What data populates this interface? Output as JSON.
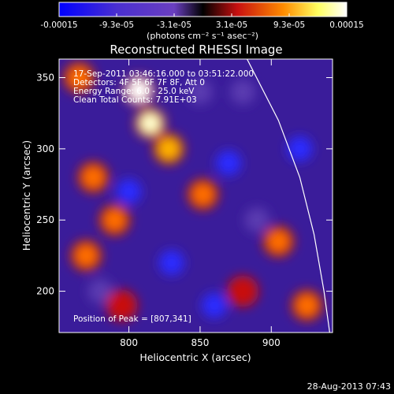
{
  "chart_data": {
    "type": "heatmap",
    "title": "Reconstructed RHESSI Image",
    "xlabel": "Heliocentric X (arcsec)",
    "ylabel": "Heliocentric Y (arcsec)",
    "x_range": [
      751,
      943
    ],
    "y_range": [
      171,
      363
    ],
    "x_ticks": [
      800,
      850,
      900
    ],
    "y_ticks": [
      200,
      250,
      300,
      350
    ],
    "colorbar": {
      "range": [
        -0.00015,
        0.00015
      ],
      "tick_labels": [
        "-0.00015",
        "-9.3e-05",
        "-3.1e-05",
        "3.1e-05",
        "9.3e-05",
        "0.00015"
      ],
      "unit_label": "(photons cm⁻² s⁻¹ asec⁻²)",
      "colors": [
        "#0000ff",
        "#6a3fc0",
        "#000000",
        "#c81010",
        "#ff8c00",
        "#ffffa0",
        "#ffffff"
      ]
    },
    "annotations": {
      "time": "17-Sep-2011 03:46:16.000 to 03:51:22.000",
      "detectors": "Detectors: 4F 5F 6F 7F 8F, Att 0",
      "energy": "Energy Range: 6.0 - 25.0 keV",
      "clean": "Clean    Total Counts: 7.91E+03",
      "peak": "Position of Peak = [807,341]"
    },
    "limb_curve": [
      [
        883,
        363
      ],
      [
        905,
        320
      ],
      [
        920,
        280
      ],
      [
        930,
        240
      ],
      [
        937,
        200
      ],
      [
        941,
        171
      ]
    ],
    "bright_sources": [
      {
        "x": 807,
        "y": 341,
        "level": 1.0
      },
      {
        "x": 815,
        "y": 318,
        "level": 0.8
      },
      {
        "x": 828,
        "y": 300,
        "level": 0.7
      },
      {
        "x": 775,
        "y": 280,
        "level": 0.55
      },
      {
        "x": 770,
        "y": 225,
        "level": 0.5
      },
      {
        "x": 790,
        "y": 250,
        "level": 0.5
      },
      {
        "x": 852,
        "y": 268,
        "level": 0.45
      },
      {
        "x": 905,
        "y": 235,
        "level": 0.5
      },
      {
        "x": 925,
        "y": 190,
        "level": 0.55
      },
      {
        "x": 880,
        "y": 200,
        "level": 0.4
      },
      {
        "x": 765,
        "y": 350,
        "level": 0.45
      },
      {
        "x": 795,
        "y": 190,
        "level": 0.4
      }
    ],
    "dim_sources": [
      {
        "x": 800,
        "y": 270,
        "level": -0.6
      },
      {
        "x": 830,
        "y": 220,
        "level": -0.5
      },
      {
        "x": 870,
        "y": 290,
        "level": -0.6
      },
      {
        "x": 880,
        "y": 340,
        "level": -0.45
      },
      {
        "x": 920,
        "y": 300,
        "level": -0.55
      },
      {
        "x": 860,
        "y": 190,
        "level": -0.5
      },
      {
        "x": 780,
        "y": 200,
        "level": -0.4
      },
      {
        "x": 890,
        "y": 250,
        "level": -0.45
      },
      {
        "x": 850,
        "y": 340,
        "level": -0.4
      }
    ]
  },
  "footer": {
    "timestamp": "28-Aug-2013 07:43"
  }
}
